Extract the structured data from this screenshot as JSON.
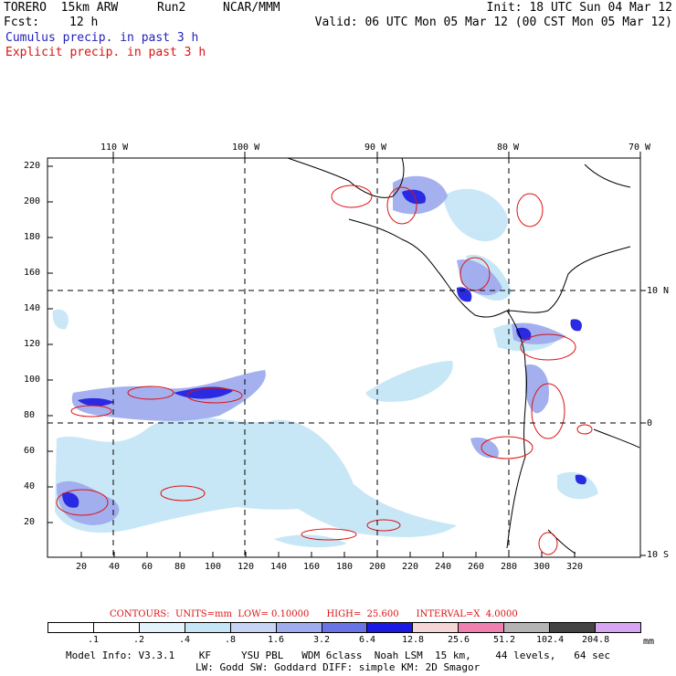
{
  "header": {
    "model": "TORERO  15km ARW",
    "run": "Run2",
    "org": "NCAR/MMM",
    "init": "Init: 18 UTC Sun 04 Mar 12",
    "fcst_label": "Fcst:",
    "fcst_value": "12 h",
    "valid": "Valid: 06 UTC Mon 05 Mar 12 (00 CST Mon 05 Mar 12)",
    "field1": "Cumulus precip. in past 3 h",
    "field2": "Explicit precip. in past 3 h"
  },
  "map": {
    "lon_labels": [
      "110 W",
      "100 W",
      "90 W",
      "80 W",
      "70 W"
    ],
    "lat_labels": [
      "10 N",
      "0",
      "10 S"
    ],
    "y_ticks": [
      "220",
      "200",
      "180",
      "160",
      "140",
      "120",
      "100",
      "80",
      "60",
      "40",
      "20"
    ],
    "x_ticks": [
      "20",
      "40",
      "60",
      "80",
      "100",
      "120",
      "140",
      "160",
      "180",
      "200",
      "220",
      "240",
      "260",
      "280",
      "300",
      "320"
    ],
    "colors": {
      "land_line": "#000000",
      "grid_line": "#000000",
      "contour": "#dd1111"
    }
  },
  "contours_line": {
    "label": "CONTOURS:  UNITS=mm  LOW= 0.10000      HIGH=  25.600      INTERVAL=X  4.0000"
  },
  "colorbar": {
    "labels": [
      ".1",
      ".2",
      ".4",
      ".8",
      "1.6",
      "3.2",
      "6.4",
      "12.8",
      "25.6",
      "51.2",
      "102.4",
      "204.8"
    ],
    "unit": "mm",
    "colors": [
      "#ffffff",
      "#ffffff",
      "#e4f2fb",
      "#c6e6f6",
      "#c8d4f4",
      "#a0acee",
      "#6a74e6",
      "#1a1ae2",
      "#f4d6d6",
      "#f080b0",
      "#b4b4b4",
      "#444444",
      "#d6a6f2"
    ]
  },
  "footer": {
    "line1": "Model Info: V3.3.1    KF     YSU PBL   WDM 6class  Noah LSM  15 km,    44 levels,   64 sec",
    "line2": "LW: Godd SW: Goddard DIFF: simple KM: 2D Smagor"
  }
}
